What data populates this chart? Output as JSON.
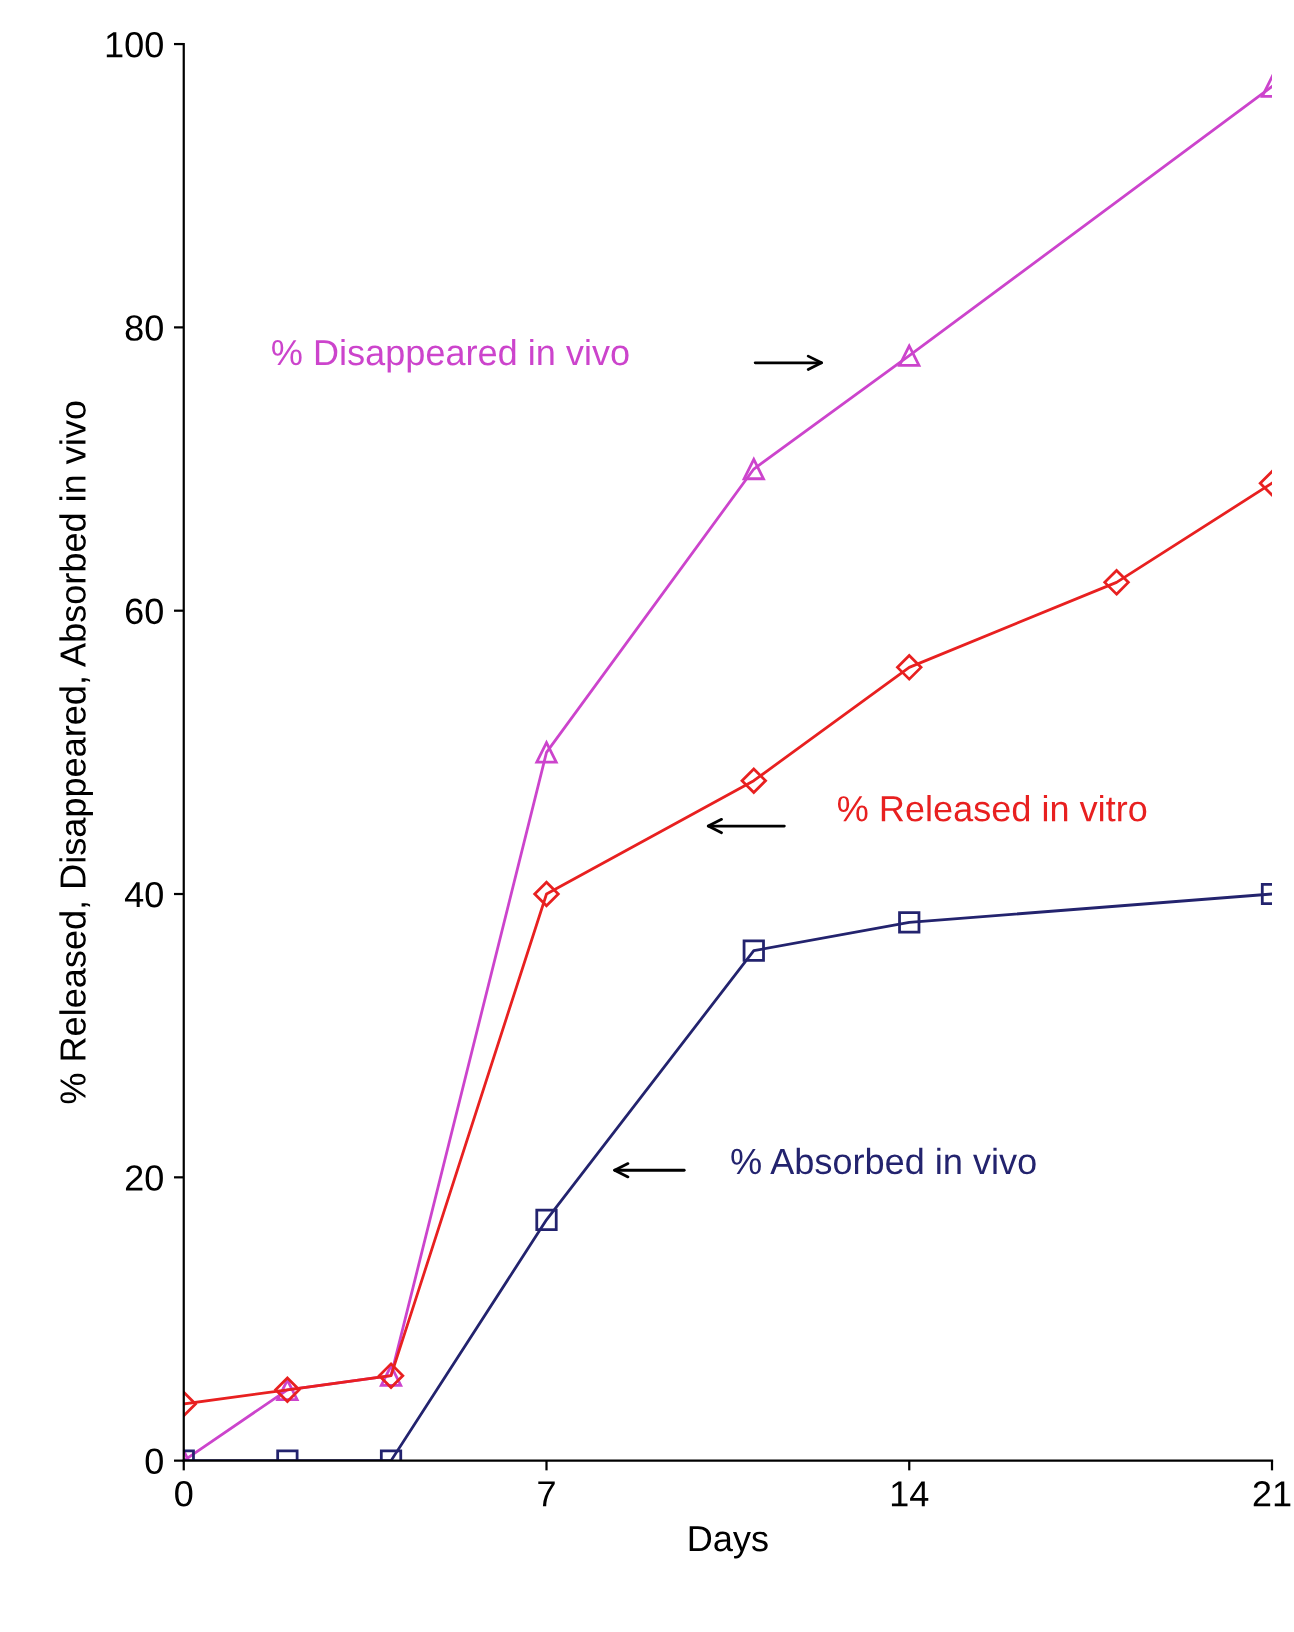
{
  "chart_data": {
    "type": "line",
    "xlabel": "Days",
    "ylabel": "% Released, Disappeared, Absorbed in vivo",
    "xlim": [
      0,
      21
    ],
    "xticks": [
      0,
      7,
      14,
      21
    ],
    "ylim": [
      0,
      100
    ],
    "yticks": [
      0,
      20,
      40,
      60,
      80,
      100
    ],
    "grid": false,
    "legend": false,
    "line_style": "solid",
    "series": [
      {
        "name": "% Disappeared in vivo",
        "color": "#cc44cc",
        "marker": "triangle",
        "x": [
          0,
          2,
          4,
          7,
          11,
          14,
          21
        ],
        "values": [
          0,
          5,
          6,
          50,
          70,
          78,
          97
        ]
      },
      {
        "name": "% Released in vitro",
        "color": "#e82020",
        "marker": "diamond",
        "x": [
          0,
          2,
          4,
          7,
          11,
          14,
          18,
          21
        ],
        "values": [
          4,
          5,
          6,
          40,
          48,
          56,
          62,
          69
        ]
      },
      {
        "name": "% Absorbed in vivo",
        "color": "#23236e",
        "marker": "square",
        "x": [
          0,
          2,
          4,
          7,
          11,
          14,
          21
        ],
        "values": [
          0,
          0,
          0,
          17,
          36,
          38,
          40
        ]
      }
    ]
  }
}
